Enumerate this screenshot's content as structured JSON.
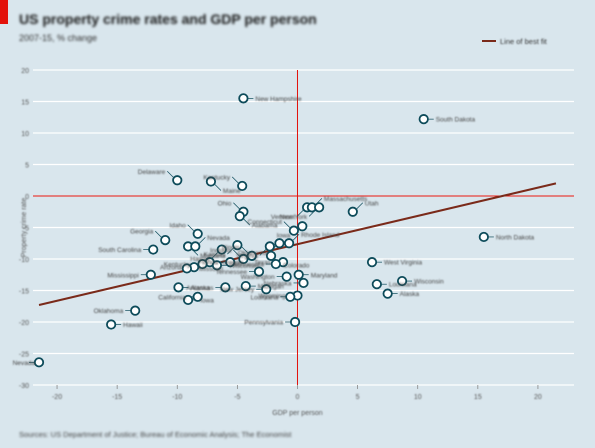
{
  "header": {
    "title": "US property crime rates and GDP per person",
    "subtitle": "2007-15, % change",
    "source": "Sources: US Department of Justice; Bureau of Economic Analysis; The Economist"
  },
  "colors": {
    "background": "#d9e6ed",
    "accent_red": "#e3120b",
    "fit_line": "#7a2a1a",
    "point_stroke": "#0d4b5a"
  },
  "chart_data": {
    "type": "scatter",
    "xlabel": "GDP per person",
    "ylabel": "Property crime rate",
    "legend": {
      "label": "Line of best fit",
      "position": "top-right"
    },
    "x_ticks": [
      "-20",
      "-15",
      "-10",
      "-5",
      "0",
      "5",
      "10",
      "15",
      "20"
    ],
    "y_ticks": [
      "20",
      "15",
      "10",
      "5",
      "0",
      "-5",
      "-10",
      "-15",
      "-20",
      "-25",
      "-30"
    ],
    "xlim": [
      -22,
      23
    ],
    "ylim": [
      -30,
      20
    ],
    "grid": true,
    "fit_line": {
      "x": [
        -21.5,
        21.5
      ],
      "y": [
        -17.3,
        2
      ]
    },
    "points": [
      {
        "label": "New Hampshire",
        "x": -4.5,
        "y": 15.5
      },
      {
        "label": "South Dakota",
        "x": 10.5,
        "y": 12.2
      },
      {
        "label": "Delaware",
        "x": -10,
        "y": 2.5
      },
      {
        "label": "Maine",
        "x": -7.2,
        "y": 2.3
      },
      {
        "label": "Kentucky",
        "x": -4.6,
        "y": 1.6
      },
      {
        "label": "Vermont",
        "x": 0.8,
        "y": -1.8
      },
      {
        "label": "Massachusetts",
        "x": 1.2,
        "y": -1.8
      },
      {
        "label": "New York",
        "x": 1.8,
        "y": -1.8
      },
      {
        "label": "Ohio",
        "x": -4.5,
        "y": -2.5
      },
      {
        "label": "Alabama",
        "x": -4.8,
        "y": -3.2
      },
      {
        "label": "Connecticut",
        "x": -0.3,
        "y": -5.5
      },
      {
        "label": "Iowa",
        "x": 0.4,
        "y": -4.8
      },
      {
        "label": "Utah",
        "x": 4.6,
        "y": -2.5
      },
      {
        "label": "North Dakota",
        "x": 15.5,
        "y": -6.5
      },
      {
        "label": "Idaho",
        "x": -8.3,
        "y": -6
      },
      {
        "label": "Montana",
        "x": -9.1,
        "y": -8
      },
      {
        "label": "Georgia",
        "x": -11,
        "y": -7
      },
      {
        "label": "South Carolina",
        "x": -12,
        "y": -8.5
      },
      {
        "label": "Nevada",
        "x": -8.5,
        "y": -8
      },
      {
        "label": "Hawaii",
        "x": -6.3,
        "y": -8.5
      },
      {
        "label": "Florida",
        "x": -5.6,
        "y": -10.5
      },
      {
        "label": "Oregon",
        "x": -7.3,
        "y": -10.5
      },
      {
        "label": "Texas",
        "x": -1.2,
        "y": -10.5
      },
      {
        "label": "Kansas",
        "x": -5,
        "y": -7.8
      },
      {
        "label": "Rhode Island",
        "x": -0.7,
        "y": -7.5
      },
      {
        "label": "Virginia",
        "x": -2.3,
        "y": -8
      },
      {
        "label": "Indiana",
        "x": -4.5,
        "y": -10
      },
      {
        "label": "Wisconsin",
        "x": -6.7,
        "y": -11
      },
      {
        "label": "Kentucky",
        "x": -7.9,
        "y": -10.8
      },
      {
        "label": "Arizona",
        "x": -8.6,
        "y": -11.3
      },
      {
        "label": "Missouri",
        "x": -9.2,
        "y": -11.5
      },
      {
        "label": "Oklahoma",
        "x": -1.5,
        "y": -7.5
      },
      {
        "label": "Illinois",
        "x": -3.8,
        "y": -9.5
      },
      {
        "label": "Colorado",
        "x": -2.2,
        "y": -9.5
      },
      {
        "label": "Tennessee",
        "x": -3.2,
        "y": -12
      },
      {
        "label": "Minnesota",
        "x": -1.8,
        "y": -10.8
      },
      {
        "label": "Maryland",
        "x": 0.1,
        "y": -12.5
      },
      {
        "label": "Washington",
        "x": -0.9,
        "y": -12.8
      },
      {
        "label": "Nebraska",
        "x": 0.5,
        "y": -13.8
      },
      {
        "label": "Alaska",
        "x": -9.9,
        "y": -14.5
      },
      {
        "label": "Arkansas",
        "x": -6,
        "y": -14.5
      },
      {
        "label": "New Jersey",
        "x": -2.6,
        "y": -14.8
      },
      {
        "label": "Michigan",
        "x": -4.3,
        "y": -14.3
      },
      {
        "label": "Wyoming",
        "x": 0,
        "y": -15.8
      },
      {
        "label": "California",
        "x": -8.3,
        "y": -16
      },
      {
        "label": "Iowa",
        "x": -9.1,
        "y": -16.5
      },
      {
        "label": "Louisiana",
        "x": -0.6,
        "y": -16
      },
      {
        "label": "Pennsylvania",
        "x": -0.2,
        "y": -20
      },
      {
        "label": "West Virginia",
        "x": 6.2,
        "y": -10.5
      },
      {
        "label": "Mississippi",
        "x": -12.2,
        "y": -12.5
      },
      {
        "label": "Louisiana",
        "x": 6.6,
        "y": -14
      },
      {
        "label": "Wisconsin",
        "x": 8.7,
        "y": -13.5
      },
      {
        "label": "Alaska",
        "x": 7.5,
        "y": -15.5
      },
      {
        "label": "Oklahoma",
        "x": -13.5,
        "y": -18.2
      },
      {
        "label": "Hawaii",
        "x": -15.5,
        "y": -20.4
      },
      {
        "label": "Nevada",
        "x": -21.5,
        "y": -26.4
      }
    ]
  }
}
